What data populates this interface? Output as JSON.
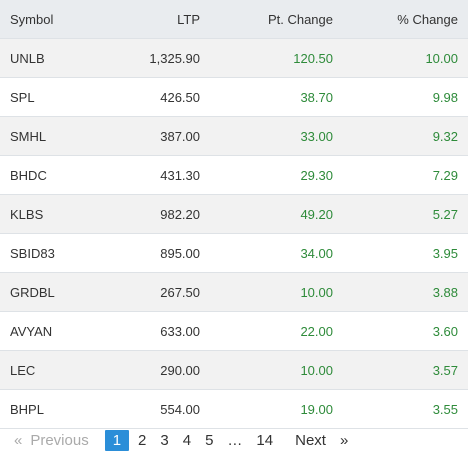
{
  "table": {
    "columns": [
      "Symbol",
      "LTP",
      "Pt. Change",
      "% Change"
    ],
    "rows": [
      [
        "UNLB",
        "1,325.90",
        "120.50",
        "10.00"
      ],
      [
        "SPL",
        "426.50",
        "38.70",
        "9.98"
      ],
      [
        "SMHL",
        "387.00",
        "33.00",
        "9.32"
      ],
      [
        "BHDC",
        "431.30",
        "29.30",
        "7.29"
      ],
      [
        "KLBS",
        "982.20",
        "49.20",
        "5.27"
      ],
      [
        "SBID83",
        "895.00",
        "34.00",
        "3.95"
      ],
      [
        "GRDBL",
        "267.50",
        "10.00",
        "3.88"
      ],
      [
        "AVYAN",
        "633.00",
        "22.00",
        "3.60"
      ],
      [
        "LEC",
        "290.00",
        "10.00",
        "3.57"
      ],
      [
        "BHPL",
        "554.00",
        "19.00",
        "3.55"
      ]
    ]
  },
  "pagination": {
    "first": "«",
    "previous": "Previous",
    "pages": [
      "1",
      "2",
      "3",
      "4",
      "5",
      "…",
      "14"
    ],
    "next": "Next",
    "last": "»"
  }
}
